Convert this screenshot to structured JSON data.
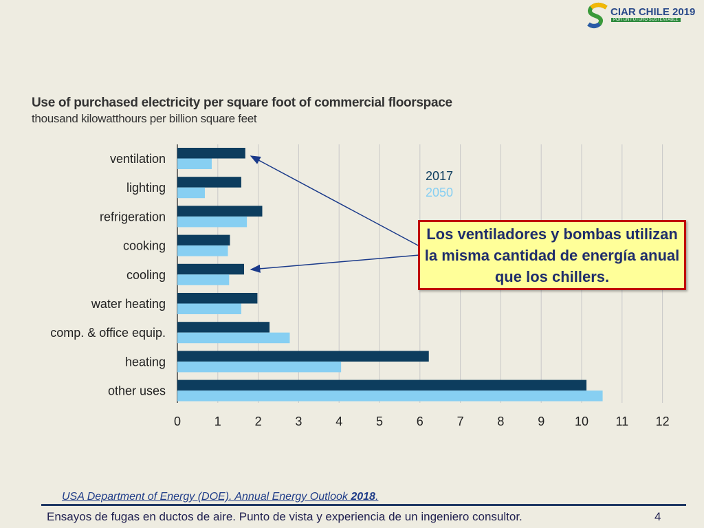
{
  "logo": {
    "title": "CIAR CHILE 2019",
    "tagline": "POR UN FUTURO SUSTENTABLE"
  },
  "chart_data": {
    "type": "bar",
    "orientation": "horizontal",
    "title": "Use of purchased electricity per square foot of commercial floorspace",
    "subtitle": "thousand kilowatthours per billion square feet",
    "categories": [
      "ventilation",
      "lighting",
      "refrigeration",
      "cooking",
      "cooling",
      "water heating",
      "comp. & office equip.",
      "heating",
      "other uses"
    ],
    "series": [
      {
        "name": "2017",
        "color": "#0d3d5e",
        "values": [
          1.68,
          1.58,
          2.1,
          1.3,
          1.65,
          1.98,
          2.28,
          6.22,
          10.12
        ]
      },
      {
        "name": "2050",
        "color": "#87cff2",
        "values": [
          0.85,
          0.68,
          1.72,
          1.25,
          1.28,
          1.58,
          2.78,
          4.05,
          10.52
        ]
      }
    ],
    "xlim": [
      0,
      12
    ],
    "xticks": [
      0,
      1,
      2,
      3,
      4,
      5,
      6,
      7,
      8,
      9,
      10,
      11,
      12
    ],
    "grid": "vertical",
    "legend": "top-right"
  },
  "callout": {
    "text": "Los ventiladores y bombas utilizan la misma cantidad de energía anual que los chillers."
  },
  "source": {
    "text": "USA Department of Energy (DOE). Annual Energy Outlook ",
    "year": "2018",
    "end": "."
  },
  "footer": {
    "text": "Ensayos de fugas en ductos de aire. Punto de vista y experiencia de un ingeniero consultor.",
    "page": "4"
  },
  "colors": {
    "background": "#eeece1",
    "series2017": "#0d3d5e",
    "series2050": "#87cff2",
    "callout_border": "#c00000",
    "callout_bg": "#ffff99"
  }
}
